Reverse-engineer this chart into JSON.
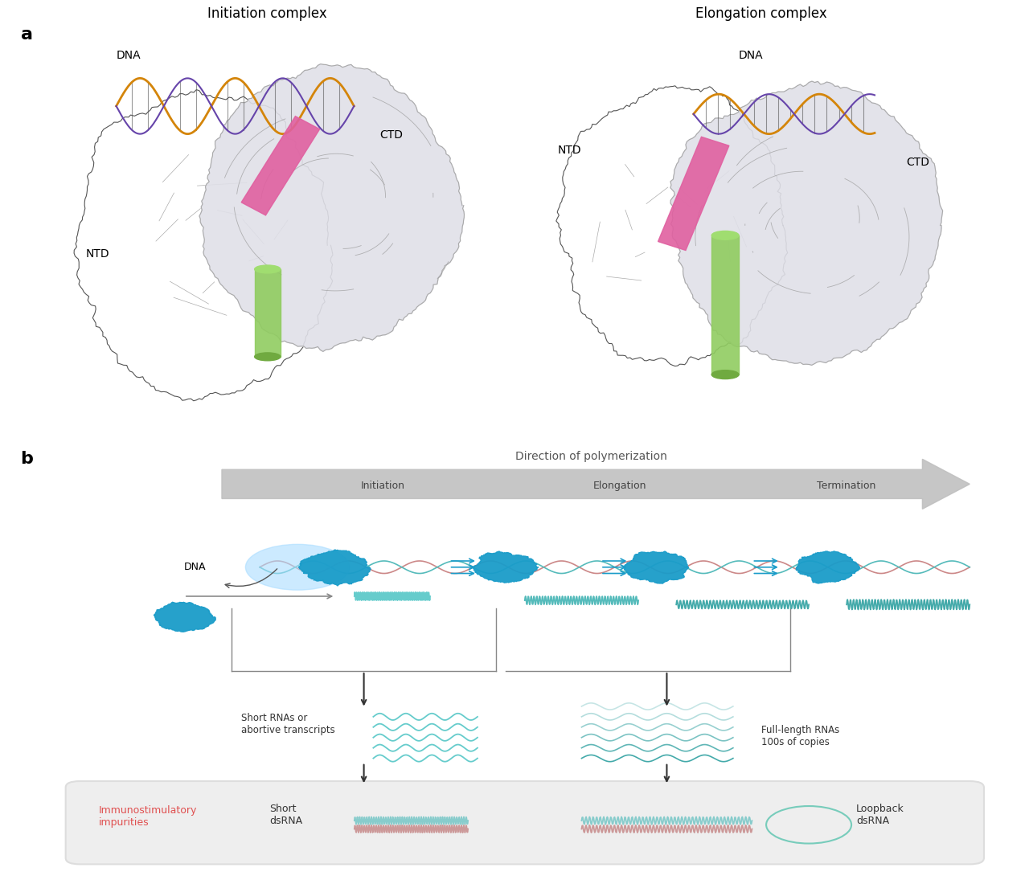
{
  "bg_color": "#ffffff",
  "panel_a_title": "Initiation complex",
  "panel_a2_title": "Elongation complex",
  "panel_b_label": "b",
  "panel_a_label": "a",
  "direction_text": "Direction of polymerization",
  "arrow_sections": [
    "Initiation",
    "Elongation",
    "Termination"
  ],
  "dna_label": "DNA",
  "short_rna_label": "Short RNAs or\nabortive transcripts",
  "full_length_label": "Full-length RNAs\n100s of copies",
  "immuno_label": "Immunostimulatory\nimpurities",
  "short_dsrna_label": "Short\ndsRNA",
  "loopback_label": "Loopback\ndsRNA",
  "ntd_label": "NTD",
  "ctd_label": "CTD",
  "dna_label2": "DNA",
  "polymerase_color": "#1a9cc9",
  "dna_color_pink": "#d4a0a0",
  "dna_color_teal": "#5bc8c8",
  "dna_color_orange": "#d4850a",
  "arrow_bg": "#b0b0b0",
  "box_bg": "#e8e8e8",
  "immuno_red": "#e05050",
  "loopback_color": "#7ec8c8"
}
